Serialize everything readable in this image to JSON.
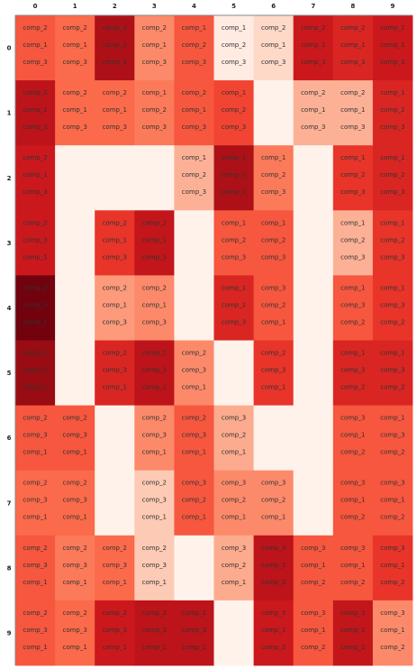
{
  "chart_data": {
    "type": "heatmap",
    "colormap": "Reds",
    "x_ticks": [
      "0",
      "1",
      "2",
      "3",
      "4",
      "5",
      "6",
      "7",
      "8",
      "9"
    ],
    "y_ticks": [
      "0",
      "1",
      "2",
      "3",
      "4",
      "5",
      "6",
      "7",
      "8",
      "9"
    ],
    "grid": false,
    "legend": "none",
    "cells": [
      [
        {
          "v": 0.55,
          "labels": [
            "comp_2",
            "comp_1",
            "comp_3"
          ]
        },
        {
          "v": 0.5,
          "labels": [
            "comp_2",
            "comp_1",
            "comp_3"
          ]
        },
        {
          "v": 0.85,
          "labels": [
            "comp_3",
            "comp_2",
            "comp_1"
          ]
        },
        {
          "v": 0.4,
          "labels": [
            "comp_2",
            "comp_1",
            "comp_3"
          ]
        },
        {
          "v": 0.55,
          "labels": [
            "comp_1",
            "comp_2",
            "comp_3"
          ]
        },
        {
          "v": 0.06,
          "labels": [
            "comp_1",
            "comp_2",
            "comp_3"
          ]
        },
        {
          "v": 0.15,
          "labels": [
            "comp_2",
            "comp_1",
            "comp_3"
          ]
        },
        {
          "v": 0.75,
          "labels": [
            "comp_2",
            "comp_1",
            "comp_3"
          ]
        },
        {
          "v": 0.7,
          "labels": [
            "comp_2",
            "comp_1",
            "comp_3"
          ]
        },
        {
          "v": 0.75,
          "labels": [
            "comp_2",
            "comp_1",
            "comp_3"
          ]
        }
      ],
      [
        {
          "v": 0.8,
          "labels": [
            "comp_2",
            "comp_1",
            "comp_3"
          ]
        },
        {
          "v": 0.5,
          "labels": [
            "comp_2",
            "comp_1",
            "comp_3"
          ]
        },
        {
          "v": 0.5,
          "labels": [
            "comp_2",
            "comp_1",
            "comp_3"
          ]
        },
        {
          "v": 0.45,
          "labels": [
            "comp_1",
            "comp_2",
            "comp_3"
          ]
        },
        {
          "v": 0.55,
          "labels": [
            "comp_2",
            "comp_1",
            "comp_3"
          ]
        },
        {
          "v": 0.6,
          "labels": [
            "comp_1",
            "comp_2",
            "comp_3"
          ]
        },
        {
          "v": 0.02,
          "labels": [
            "",
            "",
            ""
          ]
        },
        {
          "v": 0.28,
          "labels": [
            "comp_2",
            "comp_1",
            "comp_3"
          ]
        },
        {
          "v": 0.28,
          "labels": [
            "comp_2",
            "comp_1",
            "comp_3"
          ]
        },
        {
          "v": 0.7,
          "labels": [
            "comp_1",
            "comp_2",
            "comp_3"
          ]
        }
      ],
      [
        {
          "v": 0.75,
          "labels": [
            "comp_2",
            "comp_1",
            "comp_3"
          ]
        },
        {
          "v": 0.02,
          "labels": [
            "",
            "",
            ""
          ]
        },
        {
          "v": 0.02,
          "labels": [
            "",
            "",
            ""
          ]
        },
        {
          "v": 0.02,
          "labels": [
            "",
            "",
            ""
          ]
        },
        {
          "v": 0.28,
          "labels": [
            "comp_1",
            "comp_2",
            "comp_3"
          ]
        },
        {
          "v": 0.85,
          "labels": [
            "comp_1",
            "comp_2",
            "comp_3"
          ]
        },
        {
          "v": 0.45,
          "labels": [
            "comp_1",
            "comp_2",
            "comp_3"
          ]
        },
        {
          "v": 0.02,
          "labels": [
            "",
            "",
            ""
          ]
        },
        {
          "v": 0.65,
          "labels": [
            "comp_1",
            "comp_2",
            "comp_3"
          ]
        },
        {
          "v": 0.7,
          "labels": [
            "comp_1",
            "comp_2",
            "comp_3"
          ]
        }
      ],
      [
        {
          "v": 0.75,
          "labels": [
            "comp_2",
            "comp_3",
            "comp_1"
          ]
        },
        {
          "v": 0.02,
          "labels": [
            "",
            "",
            ""
          ]
        },
        {
          "v": 0.65,
          "labels": [
            "comp_2",
            "comp_1",
            "comp_3"
          ]
        },
        {
          "v": 0.78,
          "labels": [
            "comp_2",
            "comp_1",
            "comp_3"
          ]
        },
        {
          "v": 0.02,
          "labels": [
            "",
            "",
            ""
          ]
        },
        {
          "v": 0.55,
          "labels": [
            "comp_1",
            "comp_2",
            "comp_3"
          ]
        },
        {
          "v": 0.55,
          "labels": [
            "comp_1",
            "comp_2",
            "comp_3"
          ]
        },
        {
          "v": 0.02,
          "labels": [
            "",
            "",
            ""
          ]
        },
        {
          "v": 0.28,
          "labels": [
            "comp_1",
            "comp_2",
            "comp_3"
          ]
        },
        {
          "v": 0.65,
          "labels": [
            "comp_1",
            "comp_2",
            "comp_3"
          ]
        }
      ],
      [
        {
          "v": 0.98,
          "labels": [
            "comp_2",
            "comp_3",
            "comp_1"
          ]
        },
        {
          "v": 0.02,
          "labels": [
            "",
            "",
            ""
          ]
        },
        {
          "v": 0.35,
          "labels": [
            "comp_2",
            "comp_1",
            "comp_3"
          ]
        },
        {
          "v": 0.4,
          "labels": [
            "comp_2",
            "comp_1",
            "comp_3"
          ]
        },
        {
          "v": 0.02,
          "labels": [
            "",
            "",
            ""
          ]
        },
        {
          "v": 0.7,
          "labels": [
            "comp_1",
            "comp_2",
            "comp_3"
          ]
        },
        {
          "v": 0.55,
          "labels": [
            "comp_3",
            "comp_2",
            "comp_1"
          ]
        },
        {
          "v": 0.02,
          "labels": [
            "",
            "",
            ""
          ]
        },
        {
          "v": 0.55,
          "labels": [
            "comp_1",
            "comp_3",
            "comp_2"
          ]
        },
        {
          "v": 0.65,
          "labels": [
            "comp_1",
            "comp_3",
            "comp_2"
          ]
        }
      ],
      [
        {
          "v": 0.9,
          "labels": [
            "comp_2",
            "comp_3",
            "comp_1"
          ]
        },
        {
          "v": 0.02,
          "labels": [
            "",
            "",
            ""
          ]
        },
        {
          "v": 0.7,
          "labels": [
            "comp_2",
            "comp_3",
            "comp_1"
          ]
        },
        {
          "v": 0.8,
          "labels": [
            "comp_2",
            "comp_3",
            "comp_1"
          ]
        },
        {
          "v": 0.4,
          "labels": [
            "comp_2",
            "comp_3",
            "comp_1"
          ]
        },
        {
          "v": 0.02,
          "labels": [
            "",
            "",
            ""
          ]
        },
        {
          "v": 0.65,
          "labels": [
            "comp_2",
            "comp_3",
            "comp_1"
          ]
        },
        {
          "v": 0.02,
          "labels": [
            "",
            "",
            ""
          ]
        },
        {
          "v": 0.7,
          "labels": [
            "comp_1",
            "comp_3",
            "comp_2"
          ]
        },
        {
          "v": 0.7,
          "labels": [
            "comp_1",
            "comp_3",
            "comp_2"
          ]
        }
      ],
      [
        {
          "v": 0.55,
          "labels": [
            "comp_2",
            "comp_3",
            "comp_1"
          ]
        },
        {
          "v": 0.55,
          "labels": [
            "comp_2",
            "comp_3",
            "comp_1"
          ]
        },
        {
          "v": 0.02,
          "labels": [
            "",
            "",
            ""
          ]
        },
        {
          "v": 0.4,
          "labels": [
            "comp_2",
            "comp_3",
            "comp_1"
          ]
        },
        {
          "v": 0.55,
          "labels": [
            "comp_2",
            "comp_3",
            "comp_1"
          ]
        },
        {
          "v": 0.3,
          "labels": [
            "comp_3",
            "comp_2",
            "comp_1"
          ]
        },
        {
          "v": 0.02,
          "labels": [
            "",
            "",
            ""
          ]
        },
        {
          "v": 0.02,
          "labels": [
            "",
            "",
            ""
          ]
        },
        {
          "v": 0.55,
          "labels": [
            "comp_3",
            "comp_1",
            "comp_2"
          ]
        },
        {
          "v": 0.55,
          "labels": [
            "comp_1",
            "comp_3",
            "comp_2"
          ]
        }
      ],
      [
        {
          "v": 0.5,
          "labels": [
            "comp_2",
            "comp_3",
            "comp_1"
          ]
        },
        {
          "v": 0.5,
          "labels": [
            "comp_2",
            "comp_3",
            "comp_1"
          ]
        },
        {
          "v": 0.02,
          "labels": [
            "",
            "",
            ""
          ]
        },
        {
          "v": 0.2,
          "labels": [
            "comp_2",
            "comp_3",
            "comp_1"
          ]
        },
        {
          "v": 0.55,
          "labels": [
            "comp_3",
            "comp_2",
            "comp_1"
          ]
        },
        {
          "v": 0.4,
          "labels": [
            "comp_3",
            "comp_2",
            "comp_1"
          ]
        },
        {
          "v": 0.4,
          "labels": [
            "comp_3",
            "comp_2",
            "comp_1"
          ]
        },
        {
          "v": 0.02,
          "labels": [
            "",
            "",
            ""
          ]
        },
        {
          "v": 0.55,
          "labels": [
            "comp_3",
            "comp_1",
            "comp_2"
          ]
        },
        {
          "v": 0.55,
          "labels": [
            "comp_3",
            "comp_1",
            "comp_2"
          ]
        }
      ],
      [
        {
          "v": 0.55,
          "labels": [
            "comp_2",
            "comp_3",
            "comp_1"
          ]
        },
        {
          "v": 0.45,
          "labels": [
            "comp_2",
            "comp_3",
            "comp_1"
          ]
        },
        {
          "v": 0.5,
          "labels": [
            "comp_2",
            "comp_3",
            "comp_1"
          ]
        },
        {
          "v": 0.2,
          "labels": [
            "comp_2",
            "comp_3",
            "comp_1"
          ]
        },
        {
          "v": 0.02,
          "labels": [
            "",
            "",
            ""
          ]
        },
        {
          "v": 0.3,
          "labels": [
            "comp_3",
            "comp_2",
            "comp_1"
          ]
        },
        {
          "v": 0.8,
          "labels": [
            "comp_3",
            "comp_1",
            "comp_2"
          ]
        },
        {
          "v": 0.55,
          "labels": [
            "comp_3",
            "comp_1",
            "comp_2"
          ]
        },
        {
          "v": 0.55,
          "labels": [
            "comp_3",
            "comp_1",
            "comp_2"
          ]
        },
        {
          "v": 0.65,
          "labels": [
            "comp_3",
            "comp_1",
            "comp_2"
          ]
        }
      ],
      [
        {
          "v": 0.55,
          "labels": [
            "comp_2",
            "comp_3",
            "comp_1"
          ]
        },
        {
          "v": 0.5,
          "labels": [
            "comp_2",
            "comp_3",
            "comp_1"
          ]
        },
        {
          "v": 0.75,
          "labels": [
            "comp_2",
            "comp_3",
            "comp_1"
          ]
        },
        {
          "v": 0.8,
          "labels": [
            "comp_2",
            "comp_3",
            "comp_1"
          ]
        },
        {
          "v": 0.8,
          "labels": [
            "comp_2",
            "comp_3",
            "comp_1"
          ]
        },
        {
          "v": 0.02,
          "labels": [
            "",
            "",
            ""
          ]
        },
        {
          "v": 0.75,
          "labels": [
            "comp_3",
            "comp_1",
            "comp_2"
          ]
        },
        {
          "v": 0.55,
          "labels": [
            "comp_3",
            "comp_1",
            "comp_2"
          ]
        },
        {
          "v": 0.78,
          "labels": [
            "comp_3",
            "comp_1",
            "comp_2"
          ]
        },
        {
          "v": 0.4,
          "labels": [
            "comp_3",
            "comp_1",
            "comp_2"
          ]
        }
      ]
    ]
  }
}
